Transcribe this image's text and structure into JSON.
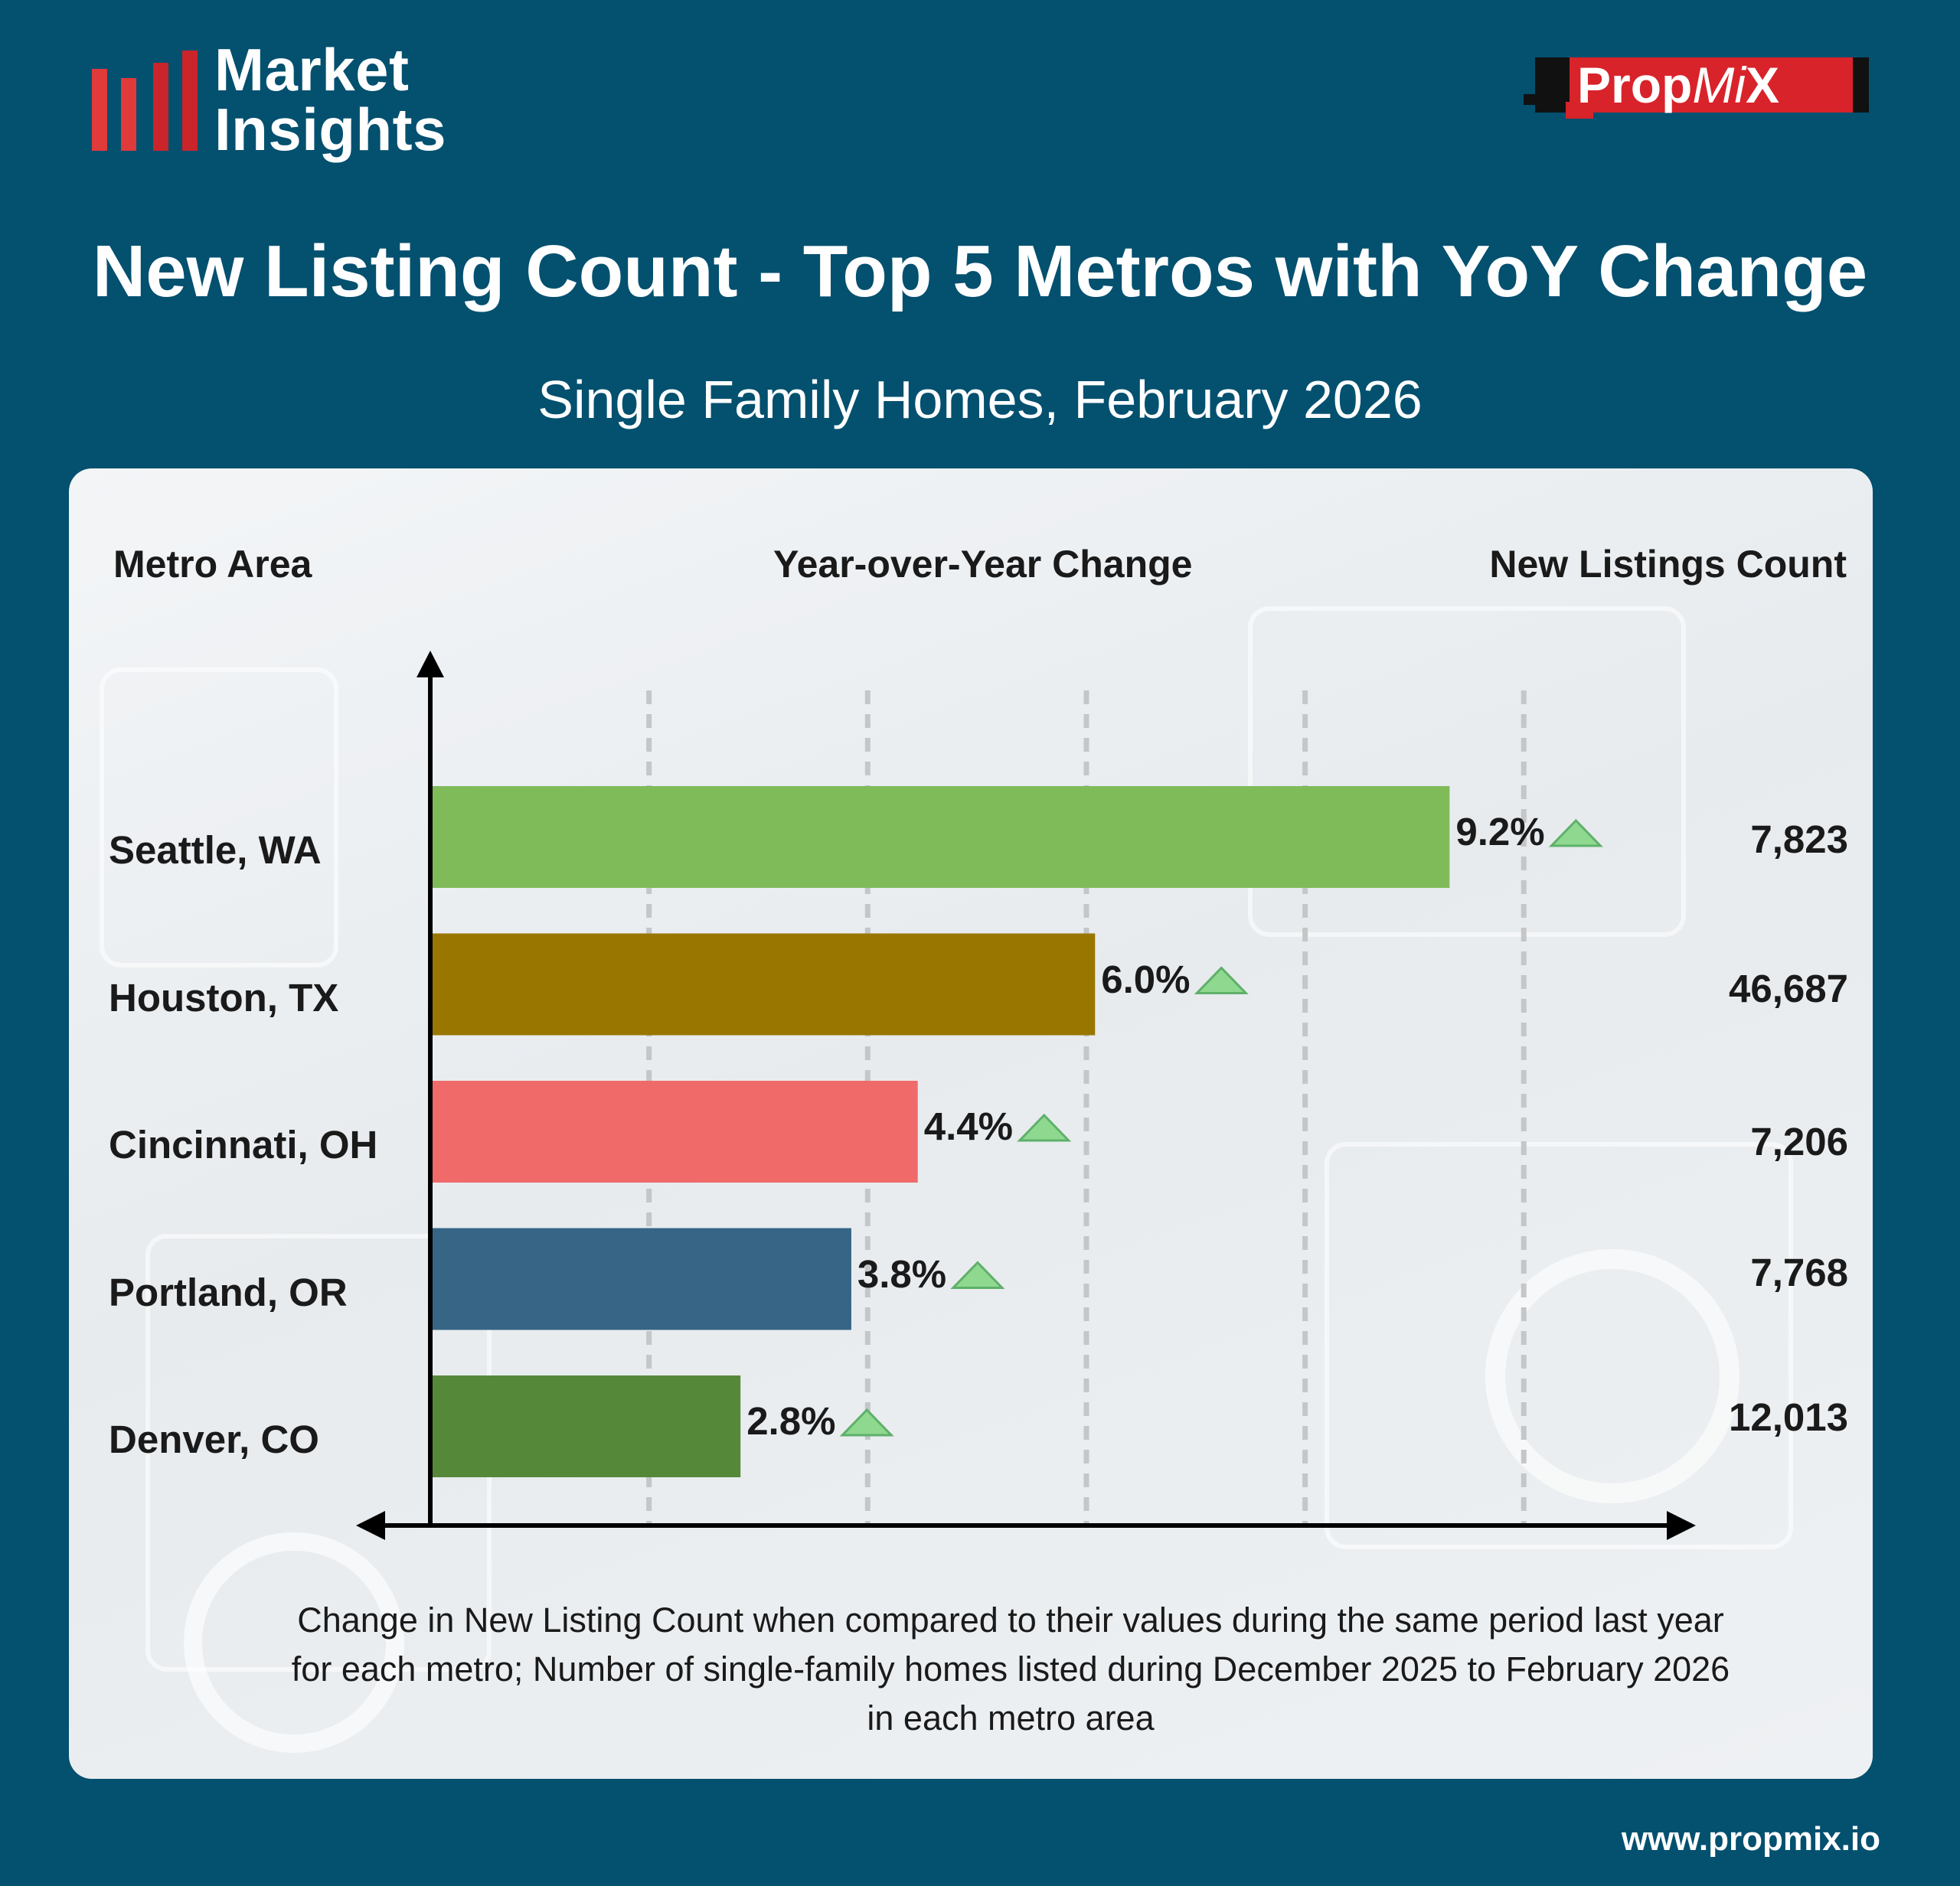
{
  "brand": {
    "logo_line1": "Market",
    "logo_line2": "Insights",
    "propmix_prop": "Prop",
    "propmix_mi": "Mi",
    "propmix_x": "X"
  },
  "header": {
    "title": "New Listing Count - Top 5 Metros with YoY Change",
    "subtitle": "Single Family Homes, February 2026"
  },
  "columns": {
    "metro": "Metro Area",
    "yoy": "Year-over-Year Change",
    "count": "New Listings Count"
  },
  "chart_data": {
    "type": "bar",
    "orientation": "horizontal",
    "categories": [
      "Seattle, WA",
      "Houston, TX",
      "Cincinnati, OH",
      "Portland, OR",
      "Denver, CO"
    ],
    "values": [
      9.2,
      6.0,
      4.4,
      3.8,
      2.8
    ],
    "value_labels": [
      "9.2%",
      "6.0%",
      "4.4%",
      "3.8%",
      "2.8%"
    ],
    "counts": [
      "7,823",
      "46,687",
      "7,206",
      "7,768",
      "12,013"
    ],
    "bar_colors": [
      "#80bb59",
      "#997600",
      "#f06a6a",
      "#376586",
      "#56883a"
    ],
    "indicator": "up-triangle",
    "indicator_color": "#8fd890",
    "grid": "dashed-vertical",
    "xlim": [
      0,
      10
    ]
  },
  "footnote": "Change in New Listing Count when compared to their values during the same period last year for each metro; Number of single-family homes listed during December 2025 to February 2026 in each metro area",
  "footer": {
    "website": "www.propmix.io"
  }
}
